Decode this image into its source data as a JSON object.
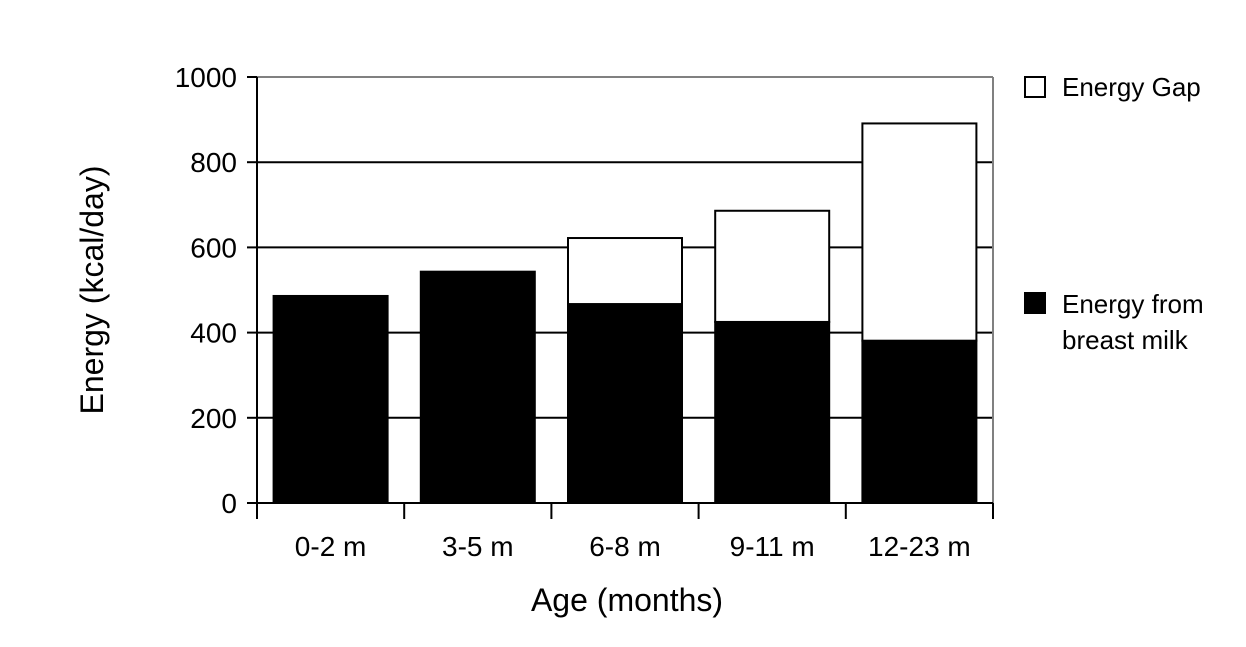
{
  "chart_data": {
    "type": "bar",
    "stacked": true,
    "categories": [
      "0-2 m",
      "3-5 m",
      "6-8 m",
      "9-11 m",
      "12-23 m"
    ],
    "series": [
      {
        "name": "Energy from breast milk",
        "values": [
          486,
          543,
          467,
          425,
          381
        ],
        "color": "#000000"
      },
      {
        "name": "Energy Gap",
        "values": [
          0,
          0,
          155,
          261,
          510
        ],
        "color": "#ffffff"
      }
    ],
    "xlabel": "Age (months)",
    "ylabel": "Energy (kcal/day)",
    "ylim": [
      0,
      1000
    ],
    "yticks": [
      "0",
      "200",
      "400",
      "600",
      "800",
      "1000"
    ],
    "grid": true,
    "legend_position": "right"
  },
  "legend": {
    "gap_label": "Energy Gap",
    "milk_label_line1": "Energy from",
    "milk_label_line2": "breast milk"
  }
}
